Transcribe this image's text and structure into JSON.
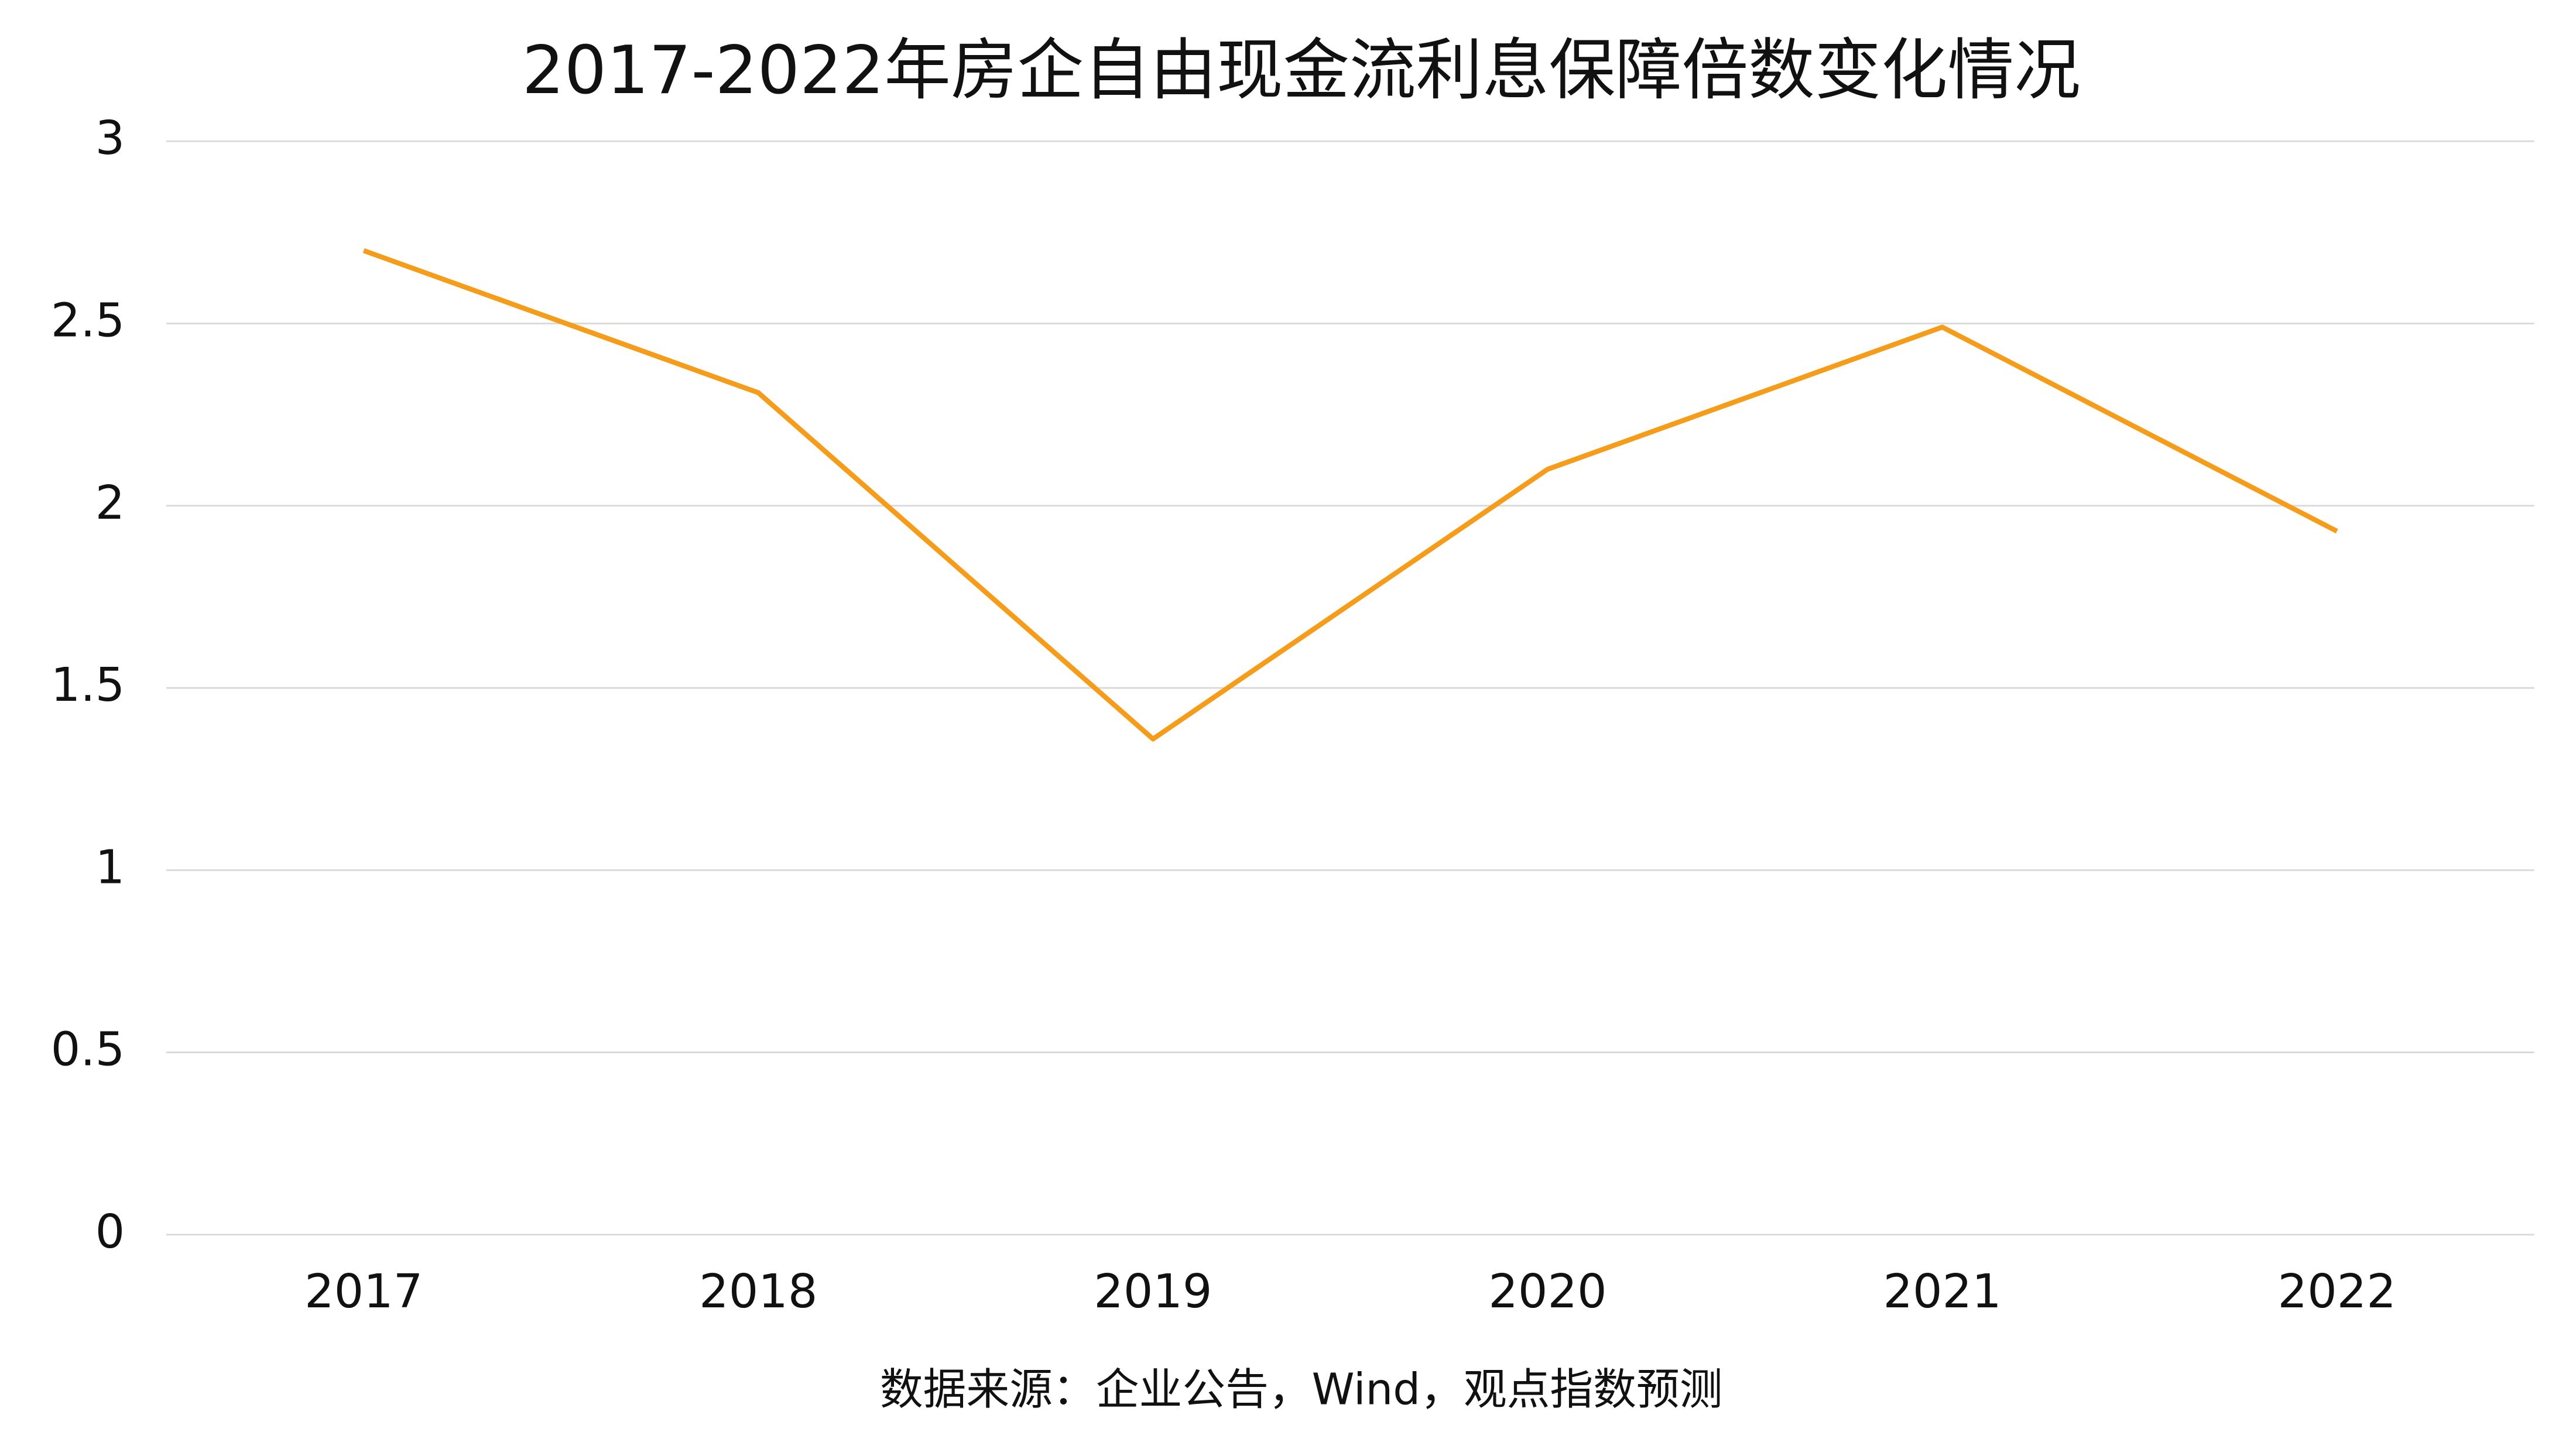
{
  "chart_data": {
    "type": "line",
    "title": "2017-2022年房企自由现金流利息保障倍数变化情况",
    "note": "数据来源：企业公告，Wind，观点指数预测",
    "categories": [
      "2017",
      "2018",
      "2019",
      "2020",
      "2021",
      "2022"
    ],
    "series": [
      {
        "name": "自由现金流利息保障倍数",
        "color": "#f59c1a",
        "values": [
          2.7,
          2.31,
          1.36,
          2.1,
          2.49,
          1.93
        ]
      }
    ],
    "ylim": [
      0,
      3
    ],
    "yticks": [
      0,
      0.5,
      1,
      1.5,
      2,
      2.5,
      3
    ],
    "grid": true,
    "legend": false
  }
}
